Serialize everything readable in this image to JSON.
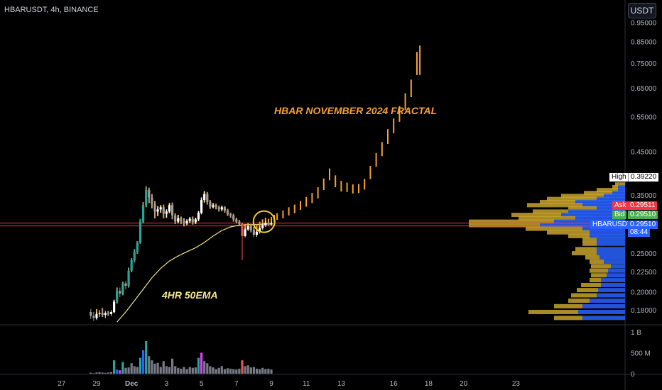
{
  "header": {
    "ticker": "HBARUSDT, 4h, BINANCE",
    "currency_button": "USDT"
  },
  "annotations": {
    "fractal": "HBAR NOVEMBER 2024 FRACTAL",
    "ema": "4HR 50EMA"
  },
  "price_tags": {
    "high_label": "High",
    "high_value": "0.39220",
    "ask_label": "Ask",
    "ask_value": "0.29511",
    "bid_label": "Bid",
    "bid_value": "0.29510",
    "symbol_label": "HBARUSDT",
    "symbol_value": "0.29510",
    "countdown": "08:44"
  },
  "colors": {
    "bg": "#000000",
    "up": "#26a69a",
    "down": "#ef5350",
    "fractal": "#f7a12f",
    "ema": "#f0e68c",
    "red_line": "#f23645",
    "profile_blue": "#2962ff",
    "profile_gold": "#c8a22c",
    "neutral_candle": "#b2b5be",
    "highlight_circle": "#f5d020"
  },
  "chart_data": {
    "type": "candlestick",
    "title": "HBARUSDT, 4h, BINANCE",
    "y_scale": "log",
    "ylim": [
      0.166,
      1.08
    ],
    "y_ticks": [
      "0.95000",
      "0.85000",
      "0.75000",
      "0.65000",
      "0.55000",
      "0.45000",
      "0.35000",
      "0.25000",
      "0.22500",
      "0.20000",
      "0.18000"
    ],
    "y_tick_values": [
      0.95,
      0.85,
      0.75,
      0.65,
      0.55,
      0.45,
      0.35,
      0.25,
      0.225,
      0.2,
      0.18
    ],
    "x_ticks": [
      "27",
      "29",
      "Dec",
      "3",
      "5",
      "7",
      "9",
      "11",
      "13",
      "16",
      "18",
      "20",
      "23"
    ],
    "x_tick_bars": [
      -12,
      0,
      12,
      24,
      36,
      48,
      60,
      72,
      84,
      102,
      114,
      126,
      144
    ],
    "volume_ticks": [
      "1 B",
      "500 M",
      "0"
    ],
    "volume_tick_values": [
      1000,
      500,
      0
    ],
    "volume_unit": "M",
    "candles": [
      [
        -2,
        0.178,
        0.174,
        0.181,
        0.171
      ],
      [
        -1,
        0.174,
        0.172,
        0.178,
        0.169
      ],
      [
        0,
        0.172,
        0.176,
        0.178,
        0.17
      ],
      [
        1,
        0.176,
        0.177,
        0.18,
        0.173
      ],
      [
        2,
        0.177,
        0.175,
        0.182,
        0.173
      ],
      [
        3,
        0.175,
        0.177,
        0.179,
        0.172
      ],
      [
        4,
        0.177,
        0.176,
        0.179,
        0.174
      ],
      [
        5,
        0.176,
        0.178,
        0.18,
        0.174
      ],
      [
        6,
        0.178,
        0.189,
        0.191,
        0.177
      ],
      [
        7,
        0.189,
        0.201,
        0.204,
        0.187
      ],
      [
        8,
        0.201,
        0.198,
        0.205,
        0.194
      ],
      [
        9,
        0.198,
        0.21,
        0.212,
        0.196
      ],
      [
        10,
        0.21,
        0.207,
        0.213,
        0.203
      ],
      [
        11,
        0.207,
        0.226,
        0.23,
        0.205
      ],
      [
        12,
        0.226,
        0.24,
        0.243,
        0.224
      ],
      [
        13,
        0.24,
        0.252,
        0.256,
        0.237
      ],
      [
        14,
        0.252,
        0.266,
        0.268,
        0.249
      ],
      [
        15,
        0.266,
        0.3,
        0.305,
        0.264
      ],
      [
        16,
        0.3,
        0.33,
        0.336,
        0.297
      ],
      [
        17,
        0.33,
        0.36,
        0.368,
        0.326
      ],
      [
        18,
        0.36,
        0.345,
        0.365,
        0.334
      ],
      [
        19,
        0.345,
        0.332,
        0.352,
        0.324
      ],
      [
        20,
        0.332,
        0.318,
        0.338,
        0.306
      ],
      [
        21,
        0.318,
        0.322,
        0.328,
        0.31
      ],
      [
        22,
        0.322,
        0.326,
        0.33,
        0.316
      ],
      [
        23,
        0.326,
        0.314,
        0.331,
        0.306
      ],
      [
        24,
        0.314,
        0.318,
        0.322,
        0.307
      ],
      [
        25,
        0.318,
        0.33,
        0.334,
        0.315
      ],
      [
        26,
        0.33,
        0.311,
        0.335,
        0.304
      ],
      [
        27,
        0.311,
        0.3,
        0.315,
        0.296
      ],
      [
        28,
        0.3,
        0.306,
        0.312,
        0.297
      ],
      [
        29,
        0.306,
        0.302,
        0.309,
        0.296
      ],
      [
        30,
        0.302,
        0.297,
        0.306,
        0.292
      ],
      [
        31,
        0.297,
        0.301,
        0.304,
        0.294
      ],
      [
        32,
        0.301,
        0.305,
        0.308,
        0.298
      ],
      [
        33,
        0.305,
        0.299,
        0.309,
        0.295
      ],
      [
        34,
        0.299,
        0.304,
        0.307,
        0.296
      ],
      [
        35,
        0.304,
        0.316,
        0.319,
        0.301
      ],
      [
        36,
        0.316,
        0.34,
        0.345,
        0.313
      ],
      [
        37,
        0.34,
        0.352,
        0.358,
        0.335
      ],
      [
        38,
        0.352,
        0.336,
        0.356,
        0.331
      ],
      [
        39,
        0.336,
        0.327,
        0.34,
        0.323
      ],
      [
        40,
        0.327,
        0.33,
        0.334,
        0.324
      ],
      [
        41,
        0.33,
        0.326,
        0.333,
        0.322
      ],
      [
        42,
        0.326,
        0.322,
        0.329,
        0.318
      ],
      [
        43,
        0.322,
        0.326,
        0.329,
        0.319
      ],
      [
        44,
        0.326,
        0.32,
        0.328,
        0.316
      ],
      [
        45,
        0.32,
        0.313,
        0.323,
        0.31
      ],
      [
        46,
        0.313,
        0.311,
        0.316,
        0.307
      ],
      [
        47,
        0.311,
        0.304,
        0.314,
        0.3
      ],
      [
        48,
        0.304,
        0.3,
        0.307,
        0.297
      ],
      [
        49,
        0.3,
        0.296,
        0.303,
        0.293
      ],
      [
        50,
        0.296,
        0.276,
        0.298,
        0.24
      ],
      [
        51,
        0.276,
        0.287,
        0.29,
        0.274
      ],
      [
        52,
        0.287,
        0.292,
        0.295,
        0.284
      ],
      [
        53,
        0.292,
        0.286,
        0.296,
        0.281
      ],
      [
        54,
        0.286,
        0.278,
        0.289,
        0.274
      ],
      [
        55,
        0.278,
        0.283,
        0.286,
        0.275
      ],
      [
        56,
        0.283,
        0.289,
        0.292,
        0.28
      ],
      [
        57,
        0.289,
        0.294,
        0.297,
        0.286
      ],
      [
        58,
        0.294,
        0.298,
        0.302,
        0.291
      ],
      [
        59,
        0.298,
        0.295,
        0.301,
        0.292
      ],
      [
        60,
        0.295,
        0.297,
        0.3,
        0.293
      ]
    ],
    "ema": [
      [
        7,
        0.168
      ],
      [
        10,
        0.178
      ],
      [
        13,
        0.19
      ],
      [
        16,
        0.203
      ],
      [
        19,
        0.217
      ],
      [
        22,
        0.229
      ],
      [
        25,
        0.239
      ],
      [
        28,
        0.246
      ],
      [
        31,
        0.252
      ],
      [
        34,
        0.258
      ],
      [
        37,
        0.266
      ],
      [
        40,
        0.276
      ],
      [
        43,
        0.285
      ],
      [
        46,
        0.291
      ],
      [
        49,
        0.294
      ],
      [
        52,
        0.295
      ],
      [
        55,
        0.295
      ],
      [
        58,
        0.296
      ],
      [
        60,
        0.296
      ]
    ],
    "fractal": [
      [
        0,
        0.174,
        0.181,
        0.171
      ],
      [
        2,
        0.177,
        0.182,
        0.173
      ],
      [
        4,
        0.176,
        0.179,
        0.174
      ],
      [
        6,
        0.178,
        0.191,
        0.177
      ],
      [
        7,
        0.189,
        0.205,
        0.187
      ],
      [
        9,
        0.198,
        0.212,
        0.196
      ],
      [
        11,
        0.207,
        0.23,
        0.205
      ],
      [
        12,
        0.226,
        0.243,
        0.224
      ],
      [
        13,
        0.24,
        0.256,
        0.237
      ],
      [
        14,
        0.252,
        0.268,
        0.249
      ],
      [
        15,
        0.266,
        0.305,
        0.264
      ],
      [
        16,
        0.3,
        0.336,
        0.297
      ],
      [
        17,
        0.33,
        0.368,
        0.326
      ],
      [
        18,
        0.345,
        0.365,
        0.334
      ],
      [
        19,
        0.332,
        0.352,
        0.324
      ],
      [
        20,
        0.318,
        0.338,
        0.306
      ],
      [
        21,
        0.322,
        0.328,
        0.31
      ],
      [
        22,
        0.326,
        0.33,
        0.316
      ],
      [
        23,
        0.314,
        0.331,
        0.306
      ],
      [
        24,
        0.318,
        0.322,
        0.307
      ],
      [
        25,
        0.33,
        0.334,
        0.315
      ],
      [
        26,
        0.311,
        0.335,
        0.304
      ],
      [
        27,
        0.3,
        0.315,
        0.296
      ],
      [
        28,
        0.306,
        0.312,
        0.297
      ],
      [
        29,
        0.302,
        0.309,
        0.296
      ],
      [
        30,
        0.297,
        0.306,
        0.292
      ],
      [
        31,
        0.301,
        0.304,
        0.294
      ],
      [
        32,
        0.305,
        0.308,
        0.298
      ],
      [
        33,
        0.299,
        0.309,
        0.295
      ],
      [
        34,
        0.304,
        0.307,
        0.296
      ],
      [
        35,
        0.316,
        0.319,
        0.301
      ],
      [
        36,
        0.34,
        0.345,
        0.313
      ],
      [
        37,
        0.352,
        0.358,
        0.335
      ],
      [
        38,
        0.336,
        0.356,
        0.331
      ],
      [
        39,
        0.327,
        0.34,
        0.323
      ],
      [
        40,
        0.33,
        0.334,
        0.324
      ],
      [
        41,
        0.326,
        0.333,
        0.322
      ],
      [
        42,
        0.322,
        0.329,
        0.318
      ],
      [
        43,
        0.326,
        0.329,
        0.319
      ],
      [
        44,
        0.32,
        0.328,
        0.316
      ],
      [
        45,
        0.313,
        0.323,
        0.31
      ],
      [
        46,
        0.311,
        0.316,
        0.307
      ],
      [
        47,
        0.304,
        0.314,
        0.3
      ],
      [
        48,
        0.3,
        0.307,
        0.297
      ],
      [
        49,
        0.296,
        0.303,
        0.293
      ],
      [
        50,
        0.29,
        0.298,
        0.285
      ],
      [
        51,
        0.292,
        0.296,
        0.284
      ],
      [
        52,
        0.294,
        0.298,
        0.286
      ],
      [
        53,
        0.289,
        0.296,
        0.283
      ],
      [
        54,
        0.286,
        0.291,
        0.28
      ],
      [
        55,
        0.29,
        0.294,
        0.283
      ],
      [
        56,
        0.295,
        0.3,
        0.288
      ],
      [
        57,
        0.299,
        0.304,
        0.292
      ],
      [
        58,
        0.302,
        0.307,
        0.295
      ],
      [
        59,
        0.3,
        0.305,
        0.294
      ],
      [
        60,
        0.303,
        0.308,
        0.297
      ],
      [
        61,
        0.306,
        0.312,
        0.3
      ],
      [
        62,
        0.309,
        0.315,
        0.303
      ],
      [
        64,
        0.313,
        0.32,
        0.306
      ],
      [
        66,
        0.318,
        0.326,
        0.311
      ],
      [
        68,
        0.323,
        0.331,
        0.315
      ],
      [
        70,
        0.329,
        0.338,
        0.321
      ],
      [
        72,
        0.336,
        0.346,
        0.327
      ],
      [
        74,
        0.344,
        0.354,
        0.334
      ],
      [
        76,
        0.354,
        0.366,
        0.343
      ],
      [
        78,
        0.372,
        0.385,
        0.36
      ],
      [
        80,
        0.395,
        0.408,
        0.381
      ],
      [
        82,
        0.378,
        0.392,
        0.366
      ],
      [
        84,
        0.368,
        0.38,
        0.357
      ],
      [
        86,
        0.366,
        0.376,
        0.356
      ],
      [
        88,
        0.362,
        0.372,
        0.353
      ],
      [
        90,
        0.364,
        0.373,
        0.354
      ],
      [
        92,
        0.372,
        0.384,
        0.361
      ],
      [
        94,
        0.398,
        0.414,
        0.384
      ],
      [
        96,
        0.43,
        0.446,
        0.412
      ],
      [
        98,
        0.456,
        0.475,
        0.438
      ],
      [
        100,
        0.492,
        0.512,
        0.47
      ],
      [
        102,
        0.522,
        0.545,
        0.5
      ],
      [
        104,
        0.56,
        0.585,
        0.534
      ],
      [
        106,
        0.6,
        0.63,
        0.572
      ],
      [
        108,
        0.65,
        0.682,
        0.616
      ],
      [
        110,
        0.73,
        0.8,
        0.7
      ],
      [
        111,
        0.77,
        0.83,
        0.7
      ]
    ],
    "volume": [
      [
        -2,
        25
      ],
      [
        -1,
        12
      ],
      [
        0,
        30
      ],
      [
        1,
        35
      ],
      [
        2,
        28
      ],
      [
        3,
        20
      ],
      [
        4,
        30
      ],
      [
        5,
        40
      ],
      [
        6,
        320
      ],
      [
        7,
        100
      ],
      [
        8,
        80
      ],
      [
        9,
        280
      ],
      [
        10,
        140
      ],
      [
        11,
        150
      ],
      [
        12,
        250
      ],
      [
        13,
        180
      ],
      [
        14,
        160
      ],
      [
        15,
        380
      ],
      [
        16,
        560
      ],
      [
        17,
        780
      ],
      [
        18,
        420
      ],
      [
        19,
        320
      ],
      [
        20,
        240
      ],
      [
        21,
        260
      ],
      [
        22,
        160
      ],
      [
        23,
        300
      ],
      [
        24,
        180
      ],
      [
        25,
        160
      ],
      [
        26,
        360
      ],
      [
        27,
        180
      ],
      [
        28,
        140
      ],
      [
        29,
        120
      ],
      [
        30,
        160
      ],
      [
        31,
        110
      ],
      [
        32,
        160
      ],
      [
        33,
        140
      ],
      [
        34,
        150
      ],
      [
        35,
        380
      ],
      [
        36,
        500
      ],
      [
        37,
        300
      ],
      [
        38,
        250
      ],
      [
        39,
        180
      ],
      [
        40,
        150
      ],
      [
        41,
        110
      ],
      [
        42,
        140
      ],
      [
        43,
        180
      ],
      [
        44,
        110
      ],
      [
        45,
        130
      ],
      [
        46,
        120
      ],
      [
        47,
        110
      ],
      [
        48,
        100
      ],
      [
        49,
        120
      ],
      [
        50,
        320
      ],
      [
        51,
        180
      ],
      [
        52,
        200
      ],
      [
        53,
        150
      ],
      [
        54,
        160
      ],
      [
        55,
        120
      ],
      [
        56,
        110
      ],
      [
        57,
        140
      ],
      [
        58,
        110
      ],
      [
        59,
        120
      ],
      [
        60,
        100
      ]
    ],
    "volume_profile": [
      [
        0.372,
        14,
        0
      ],
      [
        0.366,
        8,
        10
      ],
      [
        0.36,
        30,
        10
      ],
      [
        0.354,
        40,
        18
      ],
      [
        0.348,
        60,
        30
      ],
      [
        0.342,
        70,
        40
      ],
      [
        0.336,
        50,
        70
      ],
      [
        0.33,
        78,
        60
      ],
      [
        0.324,
        40,
        40
      ],
      [
        0.318,
        50,
        80
      ],
      [
        0.312,
        70,
        90
      ],
      [
        0.306,
        80,
        70
      ],
      [
        0.3,
        120,
        100
      ],
      [
        0.294,
        100,
        120
      ],
      [
        0.288,
        80,
        60
      ],
      [
        0.282,
        60,
        50
      ],
      [
        0.276,
        30,
        50
      ],
      [
        0.27,
        20,
        40
      ],
      [
        0.264,
        20,
        40
      ],
      [
        0.256,
        30,
        40
      ],
      [
        0.25,
        35,
        40
      ],
      [
        0.244,
        20,
        36
      ],
      [
        0.238,
        20,
        30
      ],
      [
        0.232,
        28,
        20
      ],
      [
        0.226,
        26,
        24
      ],
      [
        0.22,
        22,
        26
      ],
      [
        0.214,
        16,
        34
      ],
      [
        0.208,
        28,
        34
      ],
      [
        0.202,
        30,
        38
      ],
      [
        0.196,
        36,
        40
      ],
      [
        0.19,
        30,
        50
      ],
      [
        0.184,
        40,
        60
      ],
      [
        0.178,
        70,
        66
      ],
      [
        0.172,
        40,
        60
      ]
    ]
  }
}
